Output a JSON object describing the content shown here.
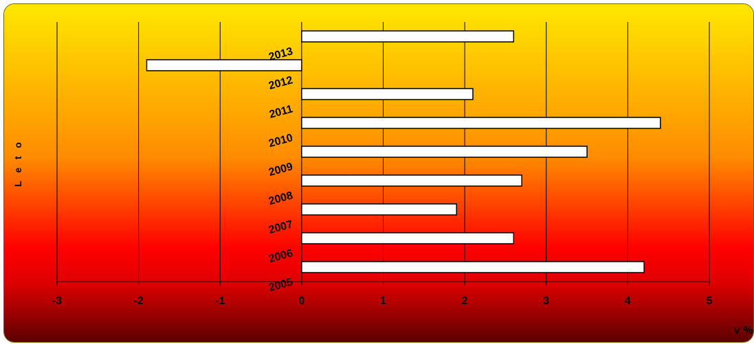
{
  "colors": {
    "bg_top": "#ffe800",
    "bg_mid": "#ff8c00",
    "bg_red": "#ff0000",
    "bg_bottom": "#5a0000",
    "bar_fill": "#ffffff",
    "bar_stroke": "#000000"
  },
  "chart_data": {
    "type": "bar",
    "orientation": "horizontal",
    "categories": [
      "2013",
      "2012",
      "2011",
      "2010",
      "2009",
      "2008",
      "2007",
      "2006",
      "2005"
    ],
    "values": [
      2.6,
      -1.9,
      2.1,
      4.4,
      3.5,
      2.7,
      1.9,
      2.6,
      4.2
    ],
    "xlim": [
      -3,
      5
    ],
    "xticks": [
      "-3",
      "-2",
      "-1",
      "0",
      "1",
      "2",
      "3",
      "4",
      "5"
    ],
    "xlabel": "v %",
    "ylabel": "L e t o",
    "grid": "vertical"
  }
}
